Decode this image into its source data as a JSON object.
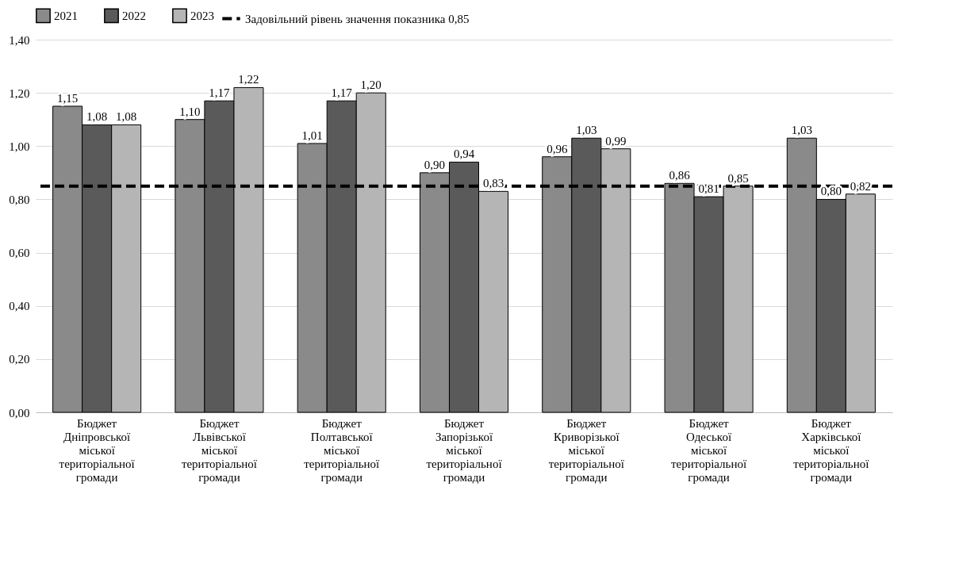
{
  "chart_data": {
    "type": "bar",
    "categories": [
      "Бюджет\nДніпровської\nміської\nтериторіальної\nгромади",
      "Бюджет\nЛьвівської\nміської\nтериторіальної\nгромади",
      "Бюджет\nПолтавської\nміської\nтериторіальної\nгромади",
      "Бюджет\nЗапорізької\nміської\nтериторіальної\nгромади",
      "Бюджет\nКриворізької\nміської\nтериторіальної\nгромади",
      "Бюджет\nОдеської\nміської\nтериторіальної\nгромади",
      "Бюджет\nХарківської\nміської\nтериторіальної\nгромади"
    ],
    "series": [
      {
        "name": "2021",
        "color": "#8a8a8a",
        "values": [
          1.15,
          1.1,
          1.01,
          0.9,
          0.96,
          0.86,
          1.03
        ],
        "value_labels": [
          "1,15",
          "1,10",
          "1,01",
          "0,90",
          "0,96",
          "0,86",
          "1,03"
        ]
      },
      {
        "name": "2022",
        "color": "#5a5a5a",
        "values": [
          1.08,
          1.17,
          1.17,
          0.94,
          1.03,
          0.81,
          0.8
        ],
        "value_labels": [
          "1,08",
          "1,17",
          "1,17",
          "0,94",
          "1,03",
          "0,81",
          "0,80"
        ]
      },
      {
        "name": "2023",
        "color": "#b5b5b5",
        "values": [
          1.08,
          1.22,
          1.2,
          0.83,
          0.99,
          0.85,
          0.82
        ],
        "value_labels": [
          "1,08",
          "1,22",
          "1,20",
          "0,83",
          "0,99",
          "0,85",
          "0,82"
        ]
      }
    ],
    "ylim": [
      0,
      1.4
    ],
    "yticks": [
      {
        "value": 0,
        "label": "0,00"
      },
      {
        "value": 0.2,
        "label": "0,20"
      },
      {
        "value": 0.4,
        "label": "0,40"
      },
      {
        "value": 0.6,
        "label": "0,60"
      },
      {
        "value": 0.8,
        "label": "0,80"
      },
      {
        "value": 1.0,
        "label": "1,00"
      },
      {
        "value": 1.2,
        "label": "1,20"
      },
      {
        "value": 1.4,
        "label": "1,40"
      }
    ],
    "ref_lines": [
      {
        "axis": "y",
        "value": 0.85,
        "label": "Задовільний рівень значення показника 0,85",
        "color": "#000000",
        "line_style": "dashed"
      }
    ],
    "grid": "y",
    "legend": "top"
  }
}
